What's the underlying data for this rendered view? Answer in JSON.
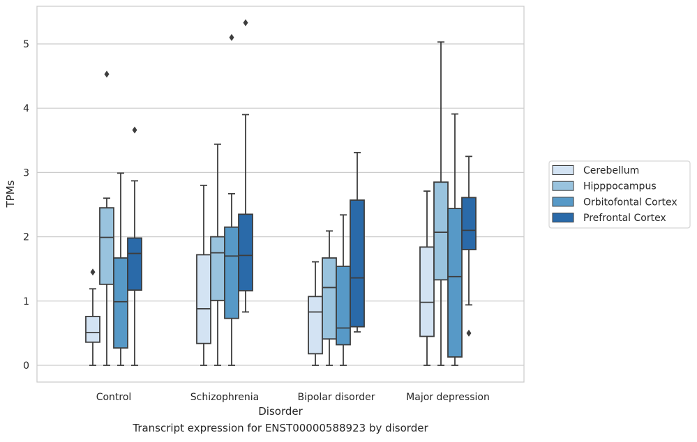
{
  "caption": "Transcript expression for ENST00000588923 by disorder",
  "chart_data": {
    "type": "boxplot",
    "xlabel": "Disorder",
    "ylabel": "TPMs",
    "ylim": [
      -0.25,
      5.6
    ],
    "yticks": [
      0,
      1,
      2,
      3,
      4,
      5
    ],
    "grid": "horizontal",
    "legend_position": "right",
    "categories": [
      "Control",
      "Schizophrenia",
      "Bipolar disorder",
      "Major depression"
    ],
    "series": [
      {
        "name": "Cerebellum",
        "color": "#d3e3f3",
        "boxes": [
          {
            "min": 0,
            "q1": 0.36,
            "median": 0.51,
            "q3": 0.76,
            "max": 1.19,
            "outliers": [
              1.45
            ]
          },
          {
            "min": 0,
            "q1": 0.34,
            "median": 0.88,
            "q3": 1.72,
            "max": 2.8,
            "outliers": []
          },
          {
            "min": 0,
            "q1": 0.18,
            "median": 0.83,
            "q3": 1.07,
            "max": 1.61,
            "outliers": []
          },
          {
            "min": 0,
            "q1": 0.45,
            "median": 0.98,
            "q3": 1.84,
            "max": 2.71,
            "outliers": []
          }
        ]
      },
      {
        "name": "Hipppocampus",
        "color": "#99c3de",
        "boxes": [
          {
            "min": 0,
            "q1": 1.26,
            "median": 1.99,
            "q3": 2.45,
            "max": 2.6,
            "outliers": [
              4.53
            ]
          },
          {
            "min": 0,
            "q1": 1.01,
            "median": 1.75,
            "q3": 2.0,
            "max": 3.44,
            "outliers": []
          },
          {
            "min": 0,
            "q1": 0.41,
            "median": 1.21,
            "q3": 1.67,
            "max": 2.09,
            "outliers": []
          },
          {
            "min": 0,
            "q1": 1.33,
            "median": 2.07,
            "q3": 2.85,
            "max": 5.03,
            "outliers": []
          }
        ]
      },
      {
        "name": "Orbitofontal Cortex",
        "color": "#5799c7",
        "boxes": [
          {
            "min": 0,
            "q1": 0.27,
            "median": 0.99,
            "q3": 1.67,
            "max": 2.99,
            "outliers": []
          },
          {
            "min": 0,
            "q1": 0.73,
            "median": 1.7,
            "q3": 2.15,
            "max": 2.67,
            "outliers": [
              5.1
            ]
          },
          {
            "min": 0,
            "q1": 0.32,
            "median": 0.58,
            "q3": 1.54,
            "max": 2.34,
            "outliers": []
          },
          {
            "min": 0,
            "q1": 0.13,
            "median": 1.38,
            "q3": 2.44,
            "max": 3.91,
            "outliers": []
          }
        ]
      },
      {
        "name": "Prefrontal Cortex",
        "color": "#2a6aa9",
        "boxes": [
          {
            "min": 0,
            "q1": 1.17,
            "median": 1.74,
            "q3": 1.98,
            "max": 2.87,
            "outliers": [
              3.66
            ]
          },
          {
            "min": 0.83,
            "q1": 1.16,
            "median": 1.71,
            "q3": 2.35,
            "max": 3.9,
            "outliers": [
              5.33
            ]
          },
          {
            "min": 0.52,
            "q1": 0.6,
            "median": 1.36,
            "q3": 2.57,
            "max": 3.31,
            "outliers": []
          },
          {
            "min": 0.94,
            "q1": 1.8,
            "median": 2.1,
            "q3": 2.61,
            "max": 3.25,
            "outliers": [
              0.5
            ]
          }
        ]
      }
    ]
  }
}
